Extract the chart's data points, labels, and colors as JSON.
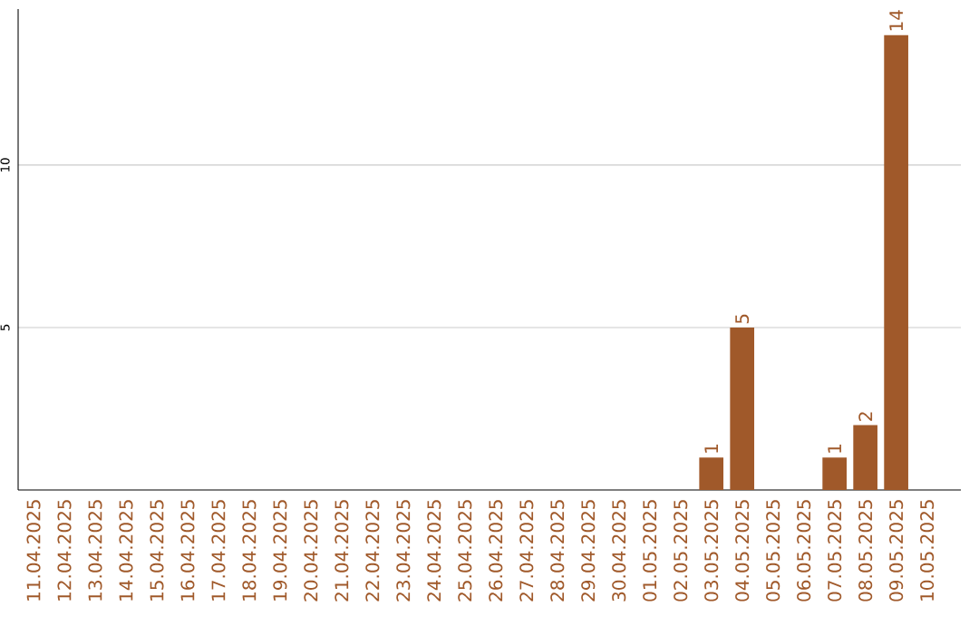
{
  "chart_data": {
    "type": "bar",
    "categories": [
      "11.04.2025",
      "12.04.2025",
      "13.04.2025",
      "14.04.2025",
      "15.04.2025",
      "16.04.2025",
      "17.04.2025",
      "18.04.2025",
      "19.04.2025",
      "20.04.2025",
      "21.04.2025",
      "22.04.2025",
      "23.04.2025",
      "24.04.2025",
      "25.04.2025",
      "26.04.2025",
      "27.04.2025",
      "28.04.2025",
      "29.04.2025",
      "30.04.2025",
      "01.05.2025",
      "02.05.2025",
      "03.05.2025",
      "04.05.2025",
      "05.05.2025",
      "06.05.2025",
      "07.05.2025",
      "08.05.2025",
      "09.05.2025",
      "10.05.2025"
    ],
    "values": [
      0,
      0,
      0,
      0,
      0,
      0,
      0,
      0,
      0,
      0,
      0,
      0,
      0,
      0,
      0,
      0,
      0,
      0,
      0,
      0,
      0,
      0,
      1,
      5,
      0,
      0,
      1,
      2,
      14,
      0
    ],
    "value_labels": [
      null,
      null,
      null,
      null,
      null,
      null,
      null,
      null,
      null,
      null,
      null,
      null,
      null,
      null,
      null,
      null,
      null,
      null,
      null,
      null,
      null,
      null,
      "1",
      "5",
      null,
      null,
      "1",
      "2",
      "14",
      null
    ],
    "color": "#a0592a",
    "ylim": [
      0,
      14.8
    ],
    "yticks": [
      5,
      10
    ],
    "grid": "y"
  }
}
